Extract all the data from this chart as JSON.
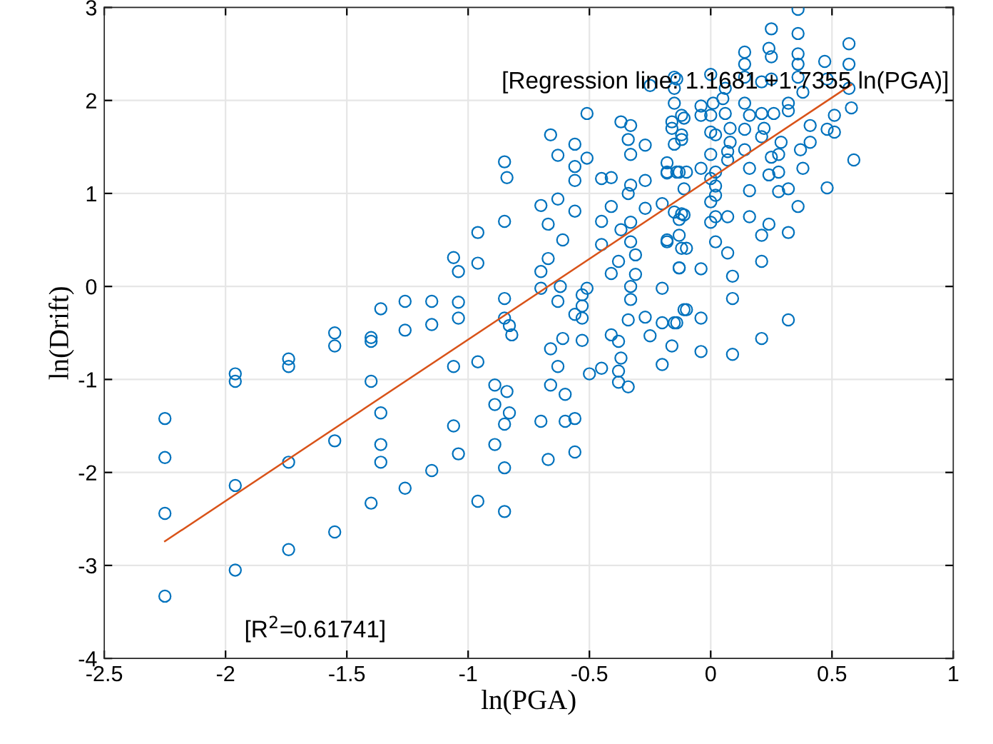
{
  "chart_data": {
    "type": "scatter",
    "xlabel": "ln(PGA)",
    "ylabel": "ln(Drift)",
    "xlim": [
      -2.5,
      1
    ],
    "ylim": [
      -4,
      3
    ],
    "xticks": [
      -2.5,
      -2,
      -1.5,
      -1,
      -0.5,
      0,
      0.5,
      1
    ],
    "yticks": [
      -4,
      -3,
      -2,
      -1,
      0,
      1,
      2,
      3
    ],
    "grid": true,
    "legend": false,
    "annotations": [
      "[Regression line: 1.1681 +1.7355 ln(PGA)]",
      "[R$^{2}$=0.61741]"
    ],
    "series": [
      {
        "color": "#0072bd",
        "marker": "circle",
        "x": [
          -2.25,
          -2.25,
          -2.25,
          -2.25,
          -1.96,
          -1.96,
          -1.96,
          -1.96,
          -1.74,
          -1.74,
          -1.74,
          -1.74,
          -1.55,
          -1.55,
          -1.55,
          -1.55,
          -1.4,
          -1.4,
          -1.4,
          -1.36,
          -1.36,
          -1.36,
          -1.36,
          -1.4,
          -1.26,
          -1.26,
          -1.26,
          -1.06,
          -1.04,
          -0.96,
          -0.96,
          -1.15,
          -1.15,
          -1.04,
          -1.04,
          -1.06,
          -0.96,
          -1.06,
          -1.04,
          -1.15,
          -0.96,
          -0.85,
          -0.84,
          -0.85,
          -0.85,
          -0.85,
          -0.83,
          -0.82,
          -0.89,
          -0.84,
          -0.89,
          -0.83,
          -0.85,
          -0.89,
          -0.85,
          -0.85,
          -0.66,
          -0.63,
          -0.56,
          -0.56,
          -0.56,
          -0.51,
          -0.7,
          -0.63,
          -0.56,
          -0.67,
          -0.61,
          -0.67,
          -0.7,
          -0.7,
          -0.62,
          -0.63,
          -0.53,
          -0.51,
          -0.53,
          -0.56,
          -0.53,
          -0.66,
          -0.61,
          -0.53,
          -0.63,
          -0.66,
          -0.6,
          -0.5,
          -0.7,
          -0.6,
          -0.56,
          -0.67,
          -0.56,
          -0.45,
          -0.41,
          -0.45,
          -0.41,
          -0.45,
          -0.41,
          -0.38,
          -0.37,
          -0.33,
          -0.33,
          -0.31,
          -0.31,
          -0.33,
          -0.33,
          -0.34,
          -0.27,
          -0.41,
          -0.38,
          -0.37,
          -0.45,
          -0.38,
          -0.38,
          -0.34,
          -0.25,
          -0.2,
          -0.2,
          -0.16,
          -0.14,
          -0.2,
          -0.18,
          -0.13,
          -0.11,
          -0.2,
          -0.27,
          -0.27,
          -0.34,
          -0.33,
          -0.18,
          -0.18,
          -0.27,
          -0.33,
          -0.34,
          -0.37,
          -0.33,
          -0.25,
          -0.14,
          -0.51,
          -0.12,
          -0.13,
          -0.11,
          -0.13,
          -0.12,
          -0.16,
          -0.12,
          0.36,
          0.25,
          0.36,
          0.57,
          0.47,
          0.57,
          0.36,
          0.36,
          0.36,
          0.24,
          0.25,
          0.14,
          0.14,
          0.14,
          0.0,
          -0.15,
          -0.15,
          0.06,
          0.21,
          0.25,
          0.48,
          0.57,
          0.38,
          0.32,
          0.51,
          0.48,
          0.51,
          0.41,
          0.41,
          0.29,
          0.28,
          0.37,
          0.38,
          0.59,
          0.48,
          0.36,
          0.32,
          0.28,
          0.32,
          0.28,
          0.24,
          0.25,
          0.22,
          0.26,
          0.16,
          0.14,
          0.14,
          0.16,
          0.16,
          0.16,
          0.08,
          0.07,
          0.07,
          0.02,
          0.0,
          0.02,
          0.0,
          0.02,
          0.02,
          0.0,
          0.0,
          0.02,
          0.07,
          0.02,
          0.07,
          0.09,
          0.09,
          0.09,
          0.21,
          0.32,
          0.21,
          0.21,
          0.24,
          -0.04,
          -0.04,
          -0.04,
          -0.13,
          -0.1,
          -0.13,
          -0.18,
          -0.1,
          -0.15,
          -0.11,
          -0.15,
          -0.12,
          -0.18,
          -0.14,
          -0.1,
          -0.04,
          -0.15,
          -0.12,
          -0.16,
          -0.11,
          -0.04,
          -0.04,
          0.0,
          0.0,
          0.06,
          0.08,
          0.21,
          0.21,
          -0.15,
          0.01,
          0.05,
          0.14,
          0.32,
          0.58
        ],
        "values": [
          -1.42,
          -1.84,
          -2.44,
          -3.33,
          -0.94,
          -1.02,
          -2.14,
          -3.05,
          -0.78,
          -0.86,
          -1.89,
          -2.83,
          -0.5,
          -0.64,
          -1.66,
          -2.64,
          -0.55,
          -0.59,
          -1.02,
          -0.24,
          -1.36,
          -1.7,
          -1.89,
          -2.33,
          -0.16,
          -0.47,
          -2.17,
          0.31,
          0.16,
          0.58,
          0.25,
          -0.16,
          -0.41,
          -0.17,
          -0.34,
          -0.86,
          -0.81,
          -1.5,
          -1.8,
          -1.98,
          -2.31,
          1.34,
          1.17,
          0.7,
          -0.13,
          -0.34,
          -0.42,
          -0.52,
          -1.06,
          -1.13,
          -1.27,
          -1.36,
          -1.48,
          -1.7,
          -1.95,
          -2.42,
          1.63,
          1.41,
          1.53,
          1.29,
          1.14,
          1.38,
          0.87,
          0.94,
          0.81,
          0.67,
          0.5,
          0.3,
          0.16,
          -0.02,
          0.0,
          -0.16,
          -0.09,
          -0.02,
          -0.21,
          -0.3,
          -0.34,
          -0.67,
          -0.56,
          -0.58,
          -0.86,
          -1.06,
          -1.16,
          -0.94,
          -1.45,
          -1.45,
          -1.42,
          -1.86,
          -1.78,
          1.16,
          1.17,
          0.7,
          0.86,
          0.45,
          0.14,
          0.27,
          0.61,
          0.69,
          0.48,
          0.34,
          0.13,
          0.0,
          -0.14,
          -0.36,
          -0.33,
          -0.52,
          -0.59,
          -0.77,
          -0.88,
          -0.91,
          -1.03,
          -1.08,
          -0.53,
          -0.39,
          -0.84,
          -0.64,
          -0.39,
          -0.02,
          0.48,
          0.2,
          -0.25,
          0.89,
          0.84,
          1.14,
          1.0,
          1.09,
          1.33,
          1.22,
          1.52,
          1.42,
          1.58,
          1.77,
          1.73,
          2.16,
          2.23,
          1.86,
          1.58,
          1.23,
          0.77,
          0.72,
          0.41,
          1.77,
          1.84,
          2.98,
          2.77,
          2.72,
          2.61,
          2.42,
          2.39,
          2.5,
          2.39,
          2.25,
          2.56,
          2.47,
          2.52,
          2.39,
          2.25,
          2.28,
          2.25,
          2.13,
          2.13,
          2.2,
          2.23,
          2.23,
          2.13,
          2.09,
          1.97,
          1.84,
          1.69,
          1.66,
          1.73,
          1.55,
          1.55,
          1.42,
          1.47,
          1.27,
          1.36,
          1.06,
          0.86,
          0.58,
          1.02,
          1.05,
          1.23,
          1.2,
          1.39,
          1.7,
          1.86,
          1.84,
          1.69,
          1.47,
          1.27,
          1.03,
          0.75,
          1.55,
          1.45,
          1.36,
          1.63,
          1.42,
          1.23,
          1.16,
          1.08,
          0.98,
          0.91,
          0.69,
          0.75,
          0.75,
          0.48,
          0.36,
          0.11,
          -0.13,
          -0.73,
          -0.56,
          -0.36,
          0.27,
          0.55,
          0.67,
          0.19,
          -0.34,
          -0.7,
          0.2,
          0.41,
          0.55,
          0.5,
          -0.25,
          -0.39,
          1.05,
          0.8,
          0.78,
          1.23,
          1.23,
          1.23,
          1.27,
          1.53,
          1.63,
          1.7,
          1.81,
          1.84,
          1.94,
          1.84,
          1.66,
          1.86,
          1.7,
          1.86,
          1.61,
          1.97,
          1.97,
          2.02,
          1.97,
          1.89,
          1.92
        ]
      },
      {
        "type": "line",
        "color": "#d95319",
        "marker": "none",
        "line_style": "solid",
        "x": [
          -2.25,
          0.58
        ],
        "values": [
          -2.74,
          2.17
        ]
      }
    ]
  }
}
